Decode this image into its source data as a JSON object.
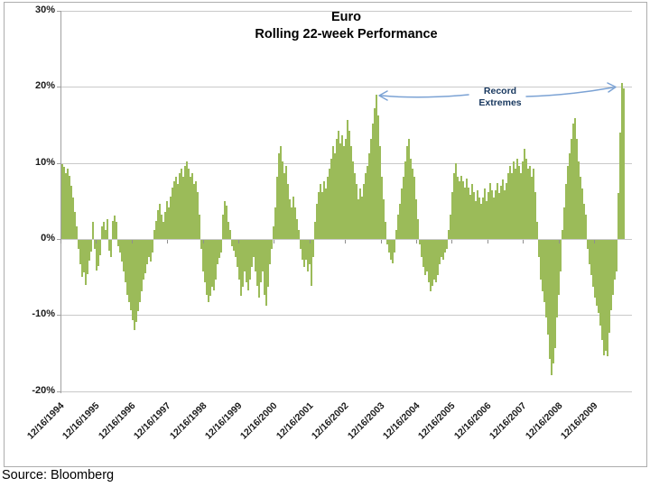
{
  "figure": {
    "title_line1": "Euro",
    "title_line2": "Rolling 22-week Performance",
    "source": "Source: Bloomberg"
  },
  "annotation": {
    "line1": "Record",
    "line2": "Extremes"
  },
  "colors": {
    "bar": "#9BBB59",
    "gridline": "#C9C9C9",
    "axis": "#A0A0A0",
    "annotation_text": "#17375E",
    "arrow": "#7BA2D4",
    "frame_border": "#ADADAD"
  },
  "chart_data": {
    "type": "bar",
    "title": "Euro Rolling 22-week Performance",
    "xlabel": "",
    "ylabel": "",
    "ylim": [
      -20,
      30
    ],
    "grid": "horizontal",
    "legend": "none",
    "y_tick_labels": [
      "30%",
      "20%",
      "10%",
      "0%",
      "-10%",
      "-20%"
    ],
    "y_tick_values": [
      30,
      20,
      10,
      0,
      -10,
      -20
    ],
    "x_tick_labels": [
      "12/16/1994",
      "12/16/1995",
      "12/16/1996",
      "12/16/1997",
      "12/16/1998",
      "12/16/1999",
      "12/16/2000",
      "12/16/2001",
      "12/16/2002",
      "12/16/2003",
      "12/16/2004",
      "12/16/2005",
      "12/16/2006",
      "12/16/2007",
      "12/16/2008",
      "12/16/2009"
    ],
    "annotation_text": "Record Extremes",
    "series": [
      {
        "name": "Euro rolling 22-week performance (%)",
        "values": [
          9.8,
          9.5,
          8.7,
          9.2,
          8.3,
          7.0,
          5.4,
          3.6,
          1.6,
          -1.2,
          -3.2,
          -4.8,
          -4.3,
          -5.9,
          -4.5,
          -2.7,
          -1.5,
          2.3,
          -1.2,
          -4.0,
          -3.4,
          -2.0,
          1.6,
          2.2,
          1.2,
          2.6,
          -1.4,
          -2.2,
          2.4,
          3.1,
          2.2,
          -0.8,
          -1.6,
          -2.8,
          -4.2,
          -5.6,
          -7.2,
          -8.2,
          -9.2,
          -10.6,
          -11.8,
          -10.8,
          -9.4,
          -8.2,
          -6.8,
          -5.2,
          -4.4,
          -3.2,
          -2.2,
          -2.8,
          -1.6,
          1.2,
          2.4,
          3.8,
          4.6,
          3.2,
          2.2,
          3.6,
          5.0,
          4.2,
          5.6,
          6.8,
          7.6,
          8.2,
          7.2,
          8.6,
          9.2,
          8.2,
          9.6,
          10.2,
          9.2,
          8.2,
          8.6,
          7.2,
          7.6,
          6.2,
          3.2,
          -1.2,
          -4.2,
          -5.6,
          -7.2,
          -8.2,
          -7.4,
          -6.2,
          -6.6,
          -5.2,
          -3.2,
          -2.4,
          -1.6,
          3.2,
          5.0,
          4.4,
          2.2,
          1.2,
          -0.8,
          -1.4,
          -2.2,
          -3.6,
          -5.2,
          -7.4,
          -6.2,
          -4.2,
          -5.6,
          -6.6,
          -5.2,
          -3.6,
          -2.2,
          -4.2,
          -6.0,
          -7.6,
          -5.6,
          -4.2,
          -7.2,
          -8.6,
          -6.2,
          -3.2,
          -1.2,
          1.6,
          4.2,
          8.2,
          11.2,
          12.2,
          10.2,
          8.6,
          9.6,
          7.2,
          5.2,
          4.2,
          5.6,
          4.2,
          2.6,
          1.2,
          -1.2,
          -2.6,
          -3.6,
          -2.6,
          -4.2,
          -3.2,
          -6.0,
          -2.2,
          2.2,
          4.6,
          6.2,
          7.2,
          6.2,
          7.6,
          6.6,
          8.2,
          9.2,
          10.6,
          12.2,
          11.2,
          13.2,
          14.2,
          12.6,
          13.6,
          12.2,
          13.2,
          15.6,
          14.2,
          12.2,
          10.2,
          8.6,
          7.2,
          5.2,
          6.6,
          5.6,
          7.2,
          8.6,
          9.6,
          11.2,
          13.2,
          15.2,
          17.2,
          18.9,
          16.2,
          12.2,
          8.2,
          5.2,
          2.2,
          -0.6,
          -1.6,
          -2.6,
          -3.1,
          -1.6,
          1.2,
          3.2,
          4.6,
          6.6,
          8.2,
          10.2,
          12.2,
          13.2,
          10.6,
          9.2,
          8.2,
          5.2,
          2.6,
          -0.6,
          -2.2,
          -3.6,
          -4.6,
          -4.2,
          -5.6,
          -6.7,
          -6.1,
          -5.2,
          -5.6,
          -4.6,
          -3.2,
          -2.2,
          -2.6,
          -1.6,
          -1.2,
          1.2,
          3.2,
          6.2,
          8.6,
          9.9,
          8.2,
          7.6,
          8.3,
          7.6,
          6.8,
          7.9,
          6.8,
          5.8,
          7.2,
          6.2,
          5.0,
          6.4,
          5.4,
          4.6,
          5.4,
          6.6,
          5.0,
          6.2,
          7.4,
          6.4,
          5.4,
          6.4,
          7.4,
          6.0,
          7.0,
          7.8,
          6.4,
          7.4,
          8.6,
          9.6,
          8.6,
          10.2,
          9.2,
          10.6,
          9.6,
          8.6,
          10.2,
          11.9,
          10.6,
          9.2,
          9.6,
          8.2,
          9.2,
          6.2,
          2.2,
          -2.2,
          -5.2,
          -6.7,
          -8.2,
          -10.2,
          -12.4,
          -15.6,
          -17.8,
          -16.2,
          -14.2,
          -10.2,
          -7.2,
          -4.2,
          1.2,
          4.2,
          7.2,
          9.6,
          11.2,
          13.2,
          15.2,
          15.9,
          13.2,
          10.2,
          8.2,
          6.6,
          4.6,
          3.2,
          -1.2,
          -3.2,
          -4.6,
          -6.2,
          -7.6,
          -8.6,
          -9.6,
          -11.2,
          -13.2,
          -15.2,
          -14.6,
          -15.3,
          -12.2,
          -9.2,
          -7.2,
          -5.2,
          -4.2,
          6.0,
          14.0,
          20.5,
          19.8
        ]
      }
    ]
  }
}
